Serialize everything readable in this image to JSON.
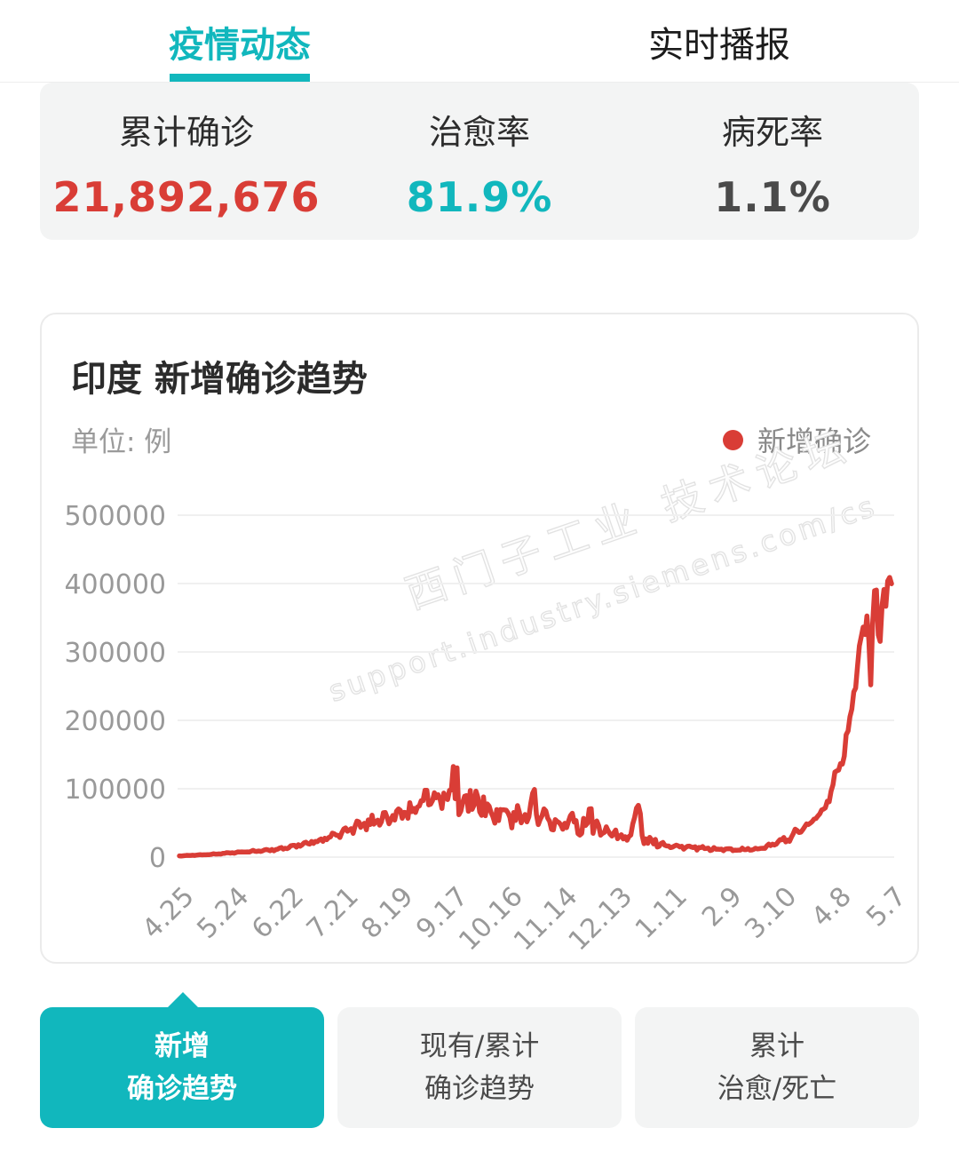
{
  "colors": {
    "teal": "#11b7bd",
    "red": "#d93d36",
    "dark": "#4a4a4a",
    "gray_text": "#999999",
    "card_bg": "#f3f4f4"
  },
  "tabs": [
    {
      "label": "疫情动态",
      "active": true
    },
    {
      "label": "实时播报",
      "active": false
    }
  ],
  "stats": {
    "items": [
      {
        "label": "累计确诊",
        "value": "21,892,676",
        "color": "red"
      },
      {
        "label": "治愈率",
        "value": "81.9%",
        "color": "teal"
      },
      {
        "label": "病死率",
        "value": "1.1%",
        "color": "dark"
      }
    ]
  },
  "chart": {
    "title": "印度 新增确诊趋势",
    "unit_label": "单位: 例",
    "legend_label": "新增确诊",
    "watermark_line1": "西门子工业 技术论坛",
    "watermark_line2": "support.industry.siemens.com/cs"
  },
  "chart_data": {
    "type": "line",
    "title": "印度 新增确诊趋势",
    "unit": "例",
    "legend": [
      "新增确诊"
    ],
    "legend_position": "top-right",
    "grid": "horizontal",
    "ylim": [
      0,
      500000
    ],
    "y_ticks": [
      0,
      100000,
      200000,
      300000,
      400000,
      500000
    ],
    "x_tick_labels": [
      "4.25",
      "5.24",
      "6.22",
      "7.21",
      "8.19",
      "9.17",
      "10.16",
      "11.14",
      "12.13",
      "1.11",
      "2.9",
      "3.10",
      "4.8",
      "5.7"
    ],
    "x_tick_days": [
      0,
      29,
      58,
      87,
      116,
      145,
      174,
      203,
      232,
      261,
      290,
      319,
      348,
      377
    ],
    "x_range_days": 377,
    "series": [
      {
        "name": "新增确诊",
        "color": "#d93d36",
        "anchors": [
          [
            0,
            1800
          ],
          [
            7,
            2600
          ],
          [
            14,
            3600
          ],
          [
            21,
            4900
          ],
          [
            29,
            7000
          ],
          [
            36,
            8200
          ],
          [
            44,
            9600
          ],
          [
            51,
            11500
          ],
          [
            58,
            14800
          ],
          [
            65,
            18500
          ],
          [
            73,
            23500
          ],
          [
            80,
            29500
          ],
          [
            87,
            37500
          ],
          [
            94,
            45000
          ],
          [
            101,
            52000
          ],
          [
            108,
            58500
          ],
          [
            116,
            65500
          ],
          [
            123,
            71000
          ],
          [
            130,
            82500
          ],
          [
            137,
            90500
          ],
          [
            143,
            94000
          ],
          [
            147,
            128000
          ],
          [
            148,
            72000
          ],
          [
            152,
            94000
          ],
          [
            156,
            87000
          ],
          [
            160,
            81500
          ],
          [
            164,
            76000
          ],
          [
            168,
            63000
          ],
          [
            172,
            71000
          ],
          [
            174,
            64000
          ],
          [
            178,
            56000
          ],
          [
            182,
            73000
          ],
          [
            185,
            51000
          ],
          [
            188,
            118000
          ],
          [
            189,
            53000
          ],
          [
            193,
            58000
          ],
          [
            197,
            49000
          ],
          [
            203,
            46500
          ],
          [
            208,
            52500
          ],
          [
            213,
            39000
          ],
          [
            218,
            79000
          ],
          [
            219,
            41000
          ],
          [
            224,
            43000
          ],
          [
            228,
            37000
          ],
          [
            232,
            33500
          ],
          [
            238,
            28500
          ],
          [
            244,
            81000
          ],
          [
            245,
            26500
          ],
          [
            250,
            22500
          ],
          [
            255,
            20000
          ],
          [
            261,
            16800
          ],
          [
            268,
            14800
          ],
          [
            275,
            13200
          ],
          [
            282,
            12200
          ],
          [
            290,
            11400
          ],
          [
            297,
            11000
          ],
          [
            304,
            11800
          ],
          [
            311,
            15800
          ],
          [
            319,
            23200
          ],
          [
            326,
            35500
          ],
          [
            333,
            47500
          ],
          [
            338,
            60000
          ],
          [
            341,
            73000
          ],
          [
            345,
            94000
          ],
          [
            348,
            127000
          ],
          [
            352,
            153000
          ],
          [
            355,
            201000
          ],
          [
            358,
            261000
          ],
          [
            360,
            301000
          ],
          [
            362,
            331000
          ],
          [
            364,
            346000
          ],
          [
            365,
            331000
          ],
          [
            366,
            252000
          ],
          [
            367,
            332000
          ],
          [
            368,
            376000
          ],
          [
            369,
            386000
          ],
          [
            370,
            331000
          ],
          [
            371,
            311000
          ],
          [
            372,
            381000
          ],
          [
            373,
            393000
          ],
          [
            374,
            361000
          ],
          [
            375,
            396000
          ],
          [
            376,
            409000
          ],
          [
            377,
            413000
          ]
        ],
        "noise_zones": [
          [
            0,
            89,
            0.07
          ],
          [
            90,
            144,
            0.15
          ],
          [
            145,
            255,
            0.22
          ],
          [
            256,
            330,
            0.13
          ],
          [
            331,
            356,
            0.05
          ],
          [
            357,
            377,
            0.02
          ]
        ],
        "weekly_pattern": [
          1.0,
          0.87,
          0.95,
          1.03,
          1.08,
          1.02,
          0.91
        ]
      }
    ]
  },
  "buttons": [
    {
      "line1": "新增",
      "line2": "确诊趋势",
      "active": true
    },
    {
      "line1": "现有/累计",
      "line2": "确诊趋势",
      "active": false
    },
    {
      "line1": "累计",
      "line2": "治愈/死亡",
      "active": false
    }
  ]
}
